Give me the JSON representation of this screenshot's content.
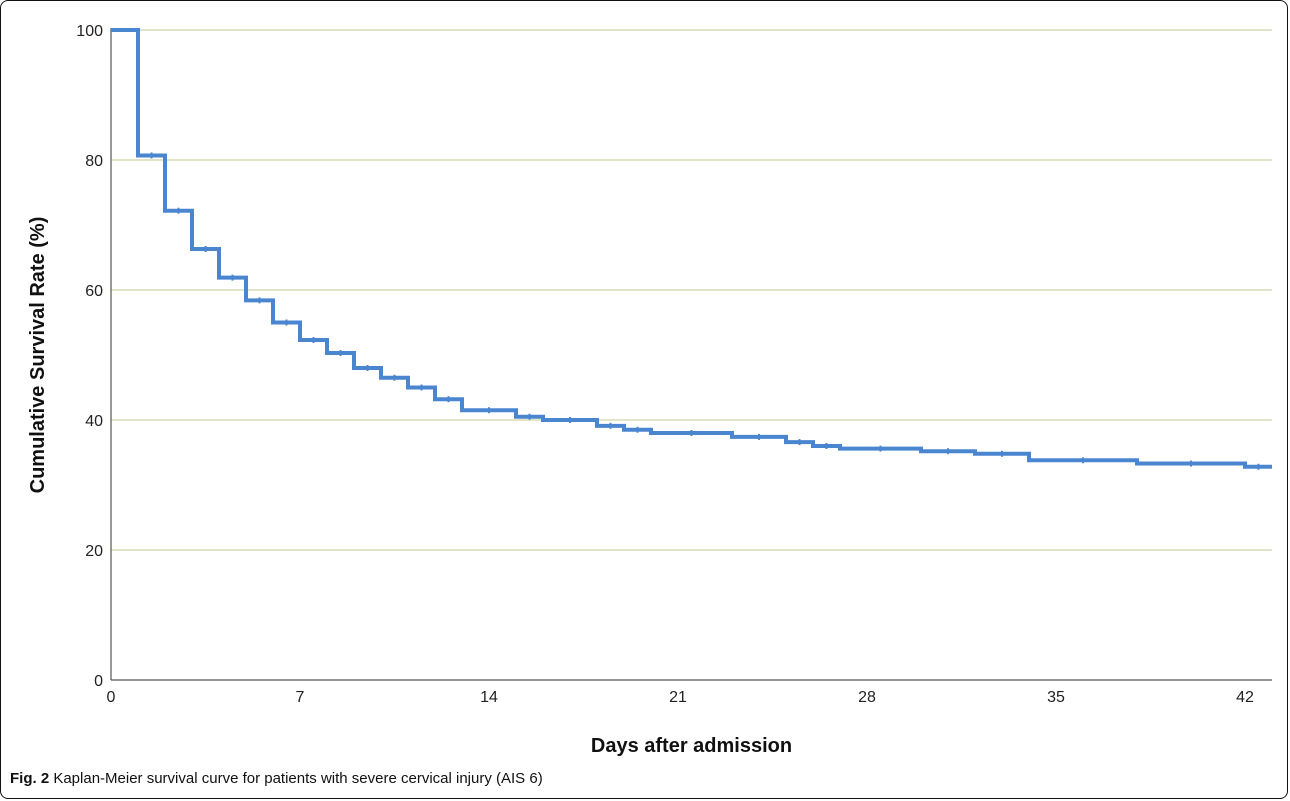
{
  "chart_data": {
    "type": "line",
    "title": "",
    "xlabel": "Days after admission",
    "ylabel": "Cumulative Survival Rate (%)",
    "xlim": [
      0,
      43
    ],
    "ylim": [
      0,
      100
    ],
    "x_ticks": [
      0,
      7,
      14,
      21,
      28,
      35,
      42
    ],
    "y_ticks": [
      0,
      20,
      40,
      60,
      80,
      100
    ],
    "grid": "horizontal",
    "line_color": "#4a86d0",
    "grid_color": "#d8dcb8",
    "series": [
      {
        "name": "",
        "step": true,
        "x": [
          0,
          1,
          2,
          3,
          4,
          5,
          6,
          7,
          8,
          9,
          10,
          11,
          12,
          13,
          15,
          16,
          18,
          19,
          20,
          23,
          25,
          26,
          27,
          30,
          32,
          34,
          38,
          42,
          43
        ],
        "y": [
          100,
          80.7,
          72.2,
          66.3,
          61.9,
          58.4,
          55.0,
          52.3,
          50.3,
          48.0,
          46.5,
          45.0,
          43.2,
          41.5,
          40.5,
          40.0,
          39.1,
          38.5,
          38.0,
          37.4,
          36.6,
          36.0,
          35.6,
          35.2,
          34.8,
          33.8,
          33.3,
          32.8,
          32.8
        ]
      }
    ]
  },
  "caption": {
    "label": "Fig. 2",
    "text": " Kaplan-Meier survival curve for patients with severe cervical injury (AIS 6)"
  }
}
